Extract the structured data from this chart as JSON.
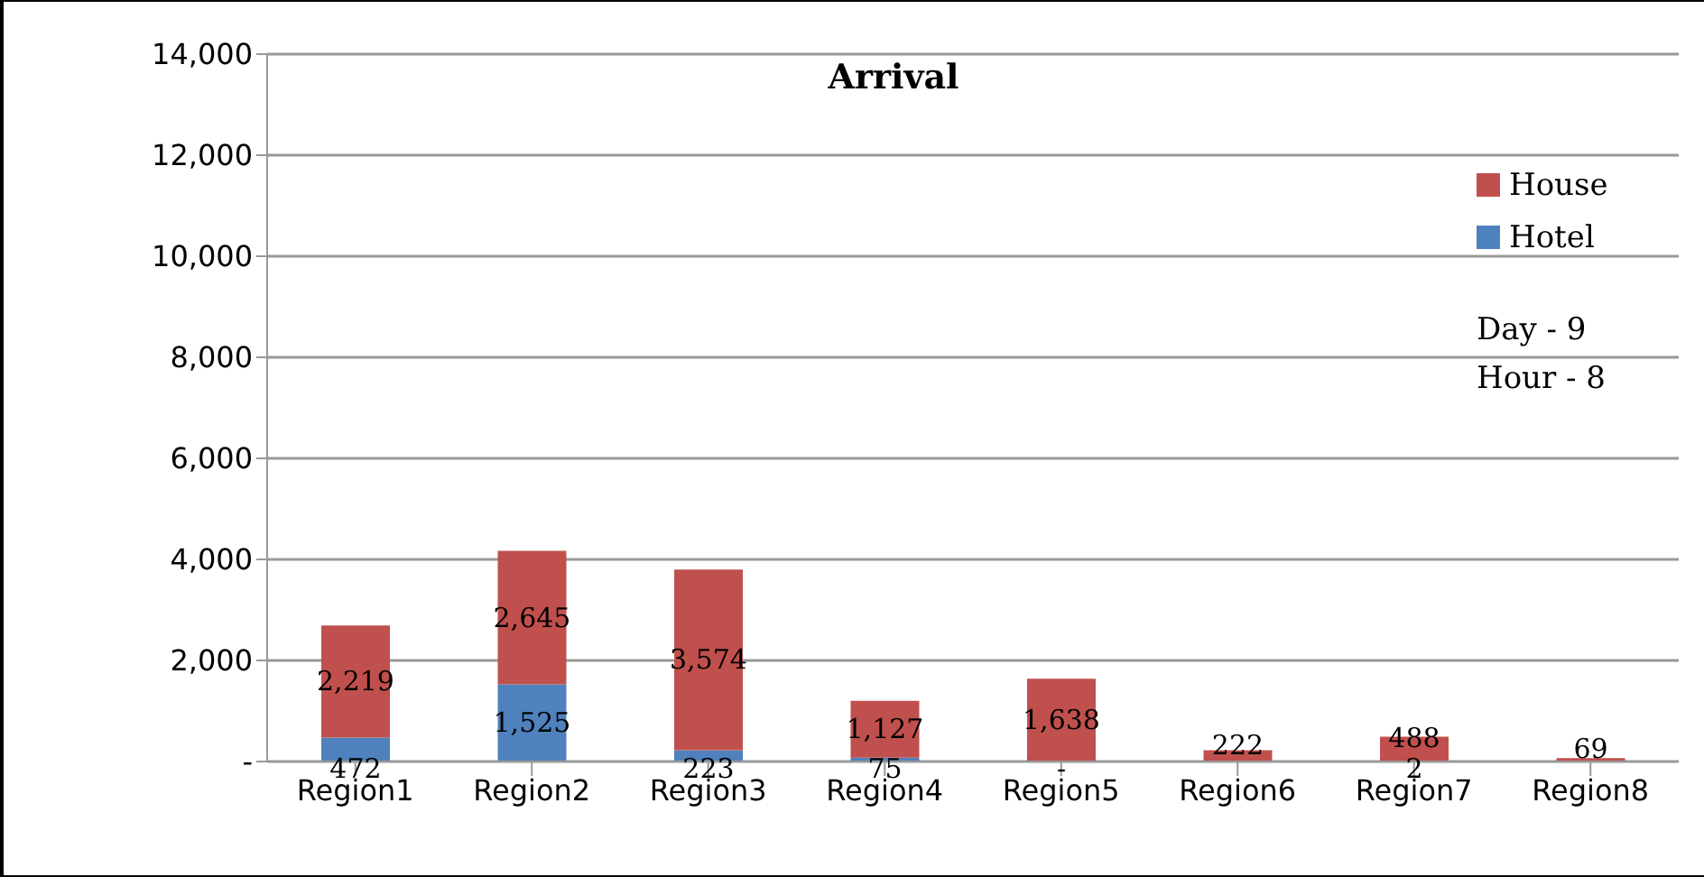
{
  "chart_data": {
    "type": "bar",
    "title": "Arrival",
    "categories": [
      "Region1",
      "Region2",
      "Region3",
      "Region4",
      "Region5",
      "Region6",
      "Region7",
      "Region8"
    ],
    "stacked": true,
    "series": [
      {
        "name": "Hotel",
        "color": "#4f81bd",
        "values": [
          472,
          1525,
          223,
          75,
          0,
          0,
          2,
          0
        ],
        "value_labels": [
          "472",
          "1,525",
          "223",
          "75",
          "-",
          null,
          "2",
          null
        ]
      },
      {
        "name": "House",
        "color": "#c0504d",
        "values": [
          2219,
          2645,
          3574,
          1127,
          1638,
          222,
          488,
          69
        ],
        "value_labels": [
          "2,219",
          "2,645",
          "3,574",
          "1,127",
          "1,638",
          "222",
          "488",
          "69"
        ]
      }
    ],
    "ylim": [
      0,
      14000
    ],
    "yticks": [
      {
        "value": 0,
        "label": "-"
      },
      {
        "value": 2000,
        "label": "2,000"
      },
      {
        "value": 4000,
        "label": "4,000"
      },
      {
        "value": 6000,
        "label": "6,000"
      },
      {
        "value": 8000,
        "label": "8,000"
      },
      {
        "value": 10000,
        "label": "10,000"
      },
      {
        "value": 12000,
        "label": "12,000"
      },
      {
        "value": 14000,
        "label": "14,000"
      }
    ],
    "grid": "y",
    "legend": "top right",
    "annotations": [
      "Day - 9",
      "Hour - 8"
    ]
  }
}
